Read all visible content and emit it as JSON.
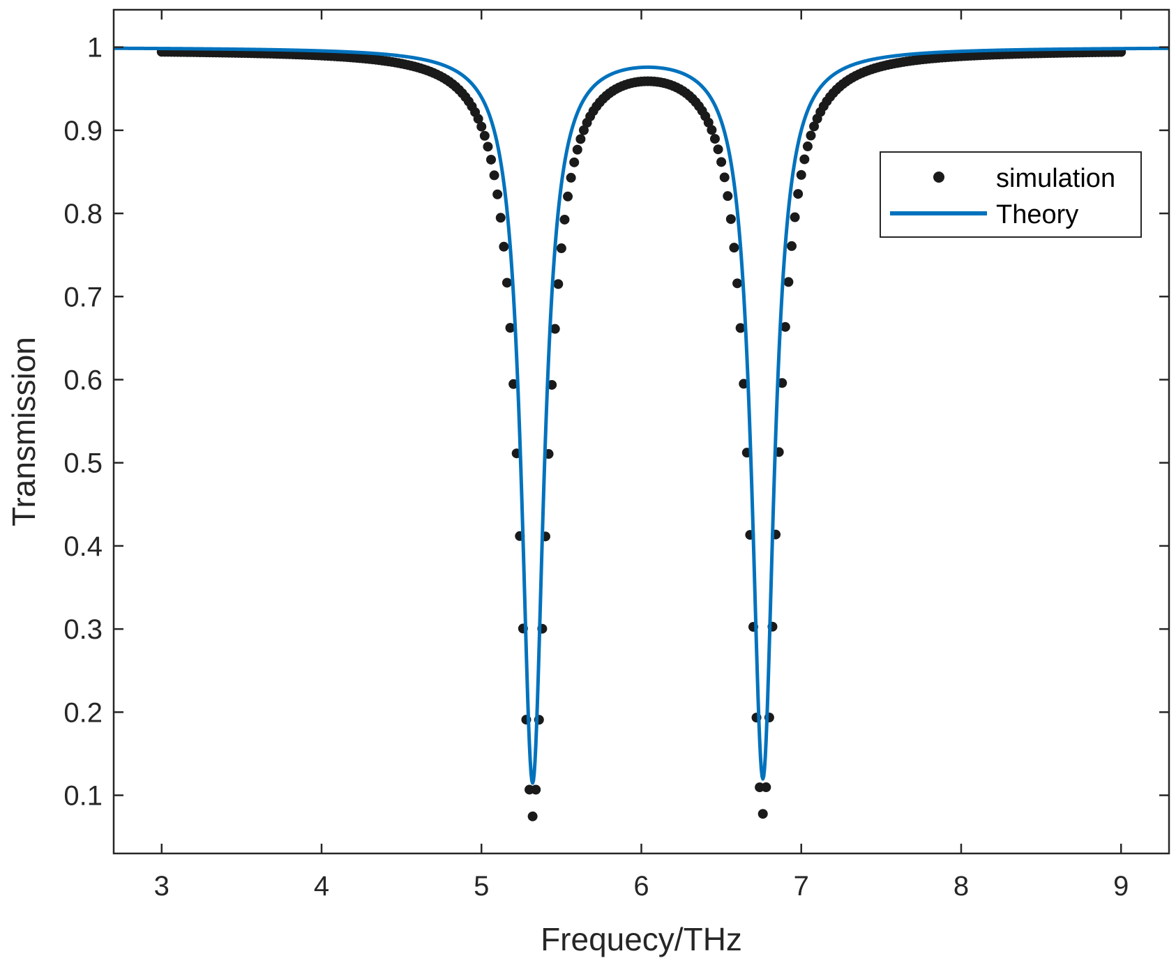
{
  "chart_data": {
    "type": "scatter",
    "title": "",
    "xlabel": "Frequecy/THz",
    "ylabel": "Transmission",
    "xlim": [
      2.7,
      9.3
    ],
    "ylim": [
      0.03,
      1.045
    ],
    "xticks": [
      "3",
      "4",
      "5",
      "6",
      "7",
      "8",
      "9"
    ],
    "yticks": [
      "0.1",
      "0.2",
      "0.3",
      "0.4",
      "0.5",
      "0.6",
      "0.7",
      "0.8",
      "0.9",
      "1"
    ],
    "grid": false,
    "legend_position": "top-right",
    "series": [
      {
        "name": "simulation",
        "kind": "markers",
        "color": "#1a1a1a",
        "model": {
          "baseline": 0.997,
          "dips": [
            {
              "center": 5.32,
              "min": 0.075,
              "hwhm": 0.105
            },
            {
              "center": 6.76,
              "min": 0.078,
              "hwhm": 0.105
            }
          ],
          "x_start": 3.0,
          "x_end": 9.0,
          "step": 0.02
        }
      },
      {
        "name": "Theory",
        "kind": "line",
        "color": "#0072bd",
        "model": {
          "baseline": 1.0,
          "dips": [
            {
              "center": 5.32,
              "min": 0.115,
              "hwhm": 0.085
            },
            {
              "center": 6.76,
              "min": 0.12,
              "hwhm": 0.085
            }
          ],
          "x_start": 2.7,
          "x_end": 9.3,
          "step": 0.005
        }
      }
    ],
    "key_points": {
      "simulation": [
        [
          3.0,
          0.995
        ],
        [
          5.32,
          0.075
        ],
        [
          6.05,
          0.993
        ],
        [
          6.76,
          0.078
        ],
        [
          9.0,
          0.995
        ]
      ],
      "Theory": [
        [
          2.7,
          1.0
        ],
        [
          5.32,
          0.115
        ],
        [
          6.05,
          0.93
        ],
        [
          6.76,
          0.12
        ],
        [
          9.3,
          1.0
        ]
      ]
    }
  }
}
